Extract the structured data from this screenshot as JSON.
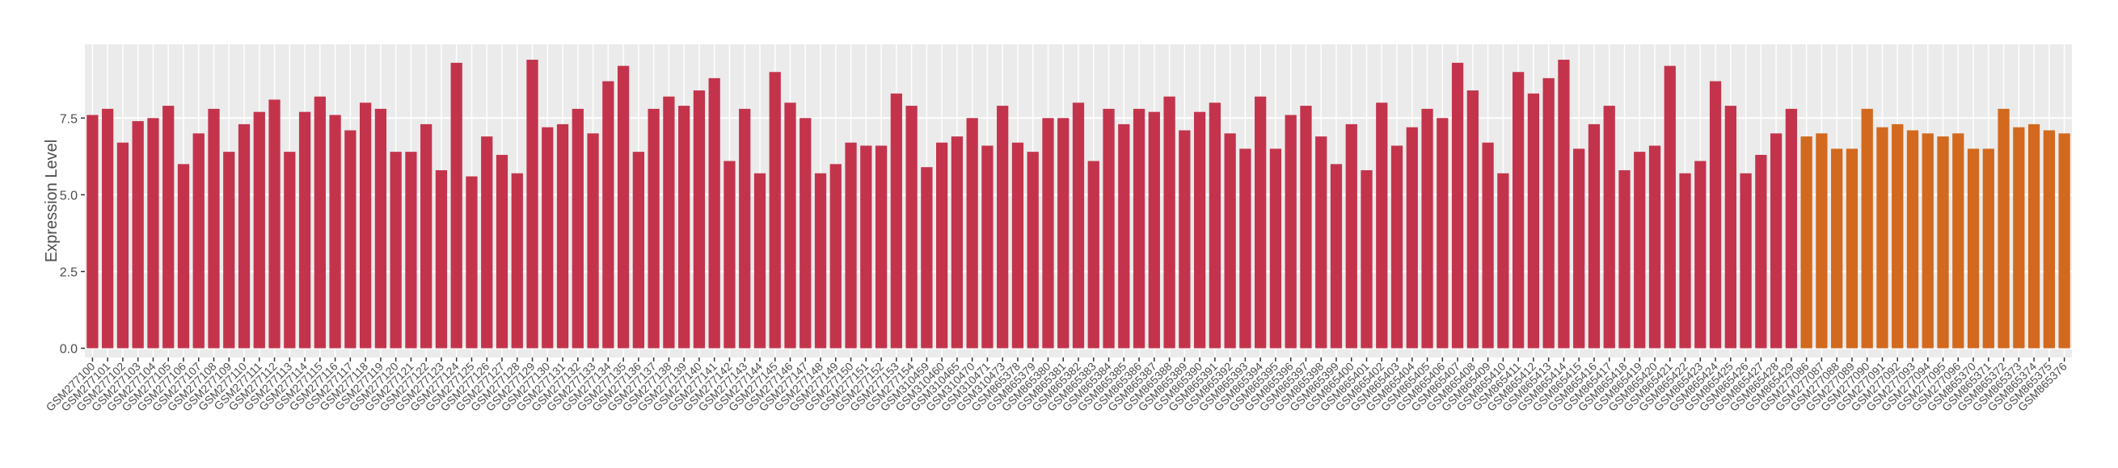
{
  "chart_data": {
    "type": "bar",
    "ylabel": "Expression Level",
    "categories": [
      "GSM277100",
      "GSM277101",
      "GSM277102",
      "GSM277103",
      "GSM277104",
      "GSM277105",
      "GSM277106",
      "GSM277107",
      "GSM277108",
      "GSM277109",
      "GSM277110",
      "GSM277111",
      "GSM277112",
      "GSM277113",
      "GSM277114",
      "GSM277115",
      "GSM277116",
      "GSM277117",
      "GSM277118",
      "GSM277119",
      "GSM277120",
      "GSM277121",
      "GSM277122",
      "GSM277123",
      "GSM277124",
      "GSM277125",
      "GSM277126",
      "GSM277127",
      "GSM277128",
      "GSM277129",
      "GSM277130",
      "GSM277131",
      "GSM277132",
      "GSM277133",
      "GSM277134",
      "GSM277135",
      "GSM277136",
      "GSM277137",
      "GSM277138",
      "GSM277139",
      "GSM277140",
      "GSM277141",
      "GSM277142",
      "GSM277143",
      "GSM277144",
      "GSM277145",
      "GSM277146",
      "GSM277147",
      "GSM277148",
      "GSM277149",
      "GSM277150",
      "GSM277151",
      "GSM277152",
      "GSM277153",
      "GSM277154",
      "GSM310459",
      "GSM310460",
      "GSM310465",
      "GSM310470",
      "GSM310471",
      "GSM310473",
      "GSM865378",
      "GSM865379",
      "GSM865380",
      "GSM865381",
      "GSM865382",
      "GSM865383",
      "GSM865384",
      "GSM865385",
      "GSM865386",
      "GSM865387",
      "GSM865388",
      "GSM865389",
      "GSM865390",
      "GSM865391",
      "GSM865392",
      "GSM865393",
      "GSM865394",
      "GSM865395",
      "GSM865396",
      "GSM865397",
      "GSM865398",
      "GSM865399",
      "GSM865400",
      "GSM865401",
      "GSM865402",
      "GSM865403",
      "GSM865404",
      "GSM865405",
      "GSM865406",
      "GSM865407",
      "GSM865408",
      "GSM865409",
      "GSM865410",
      "GSM865411",
      "GSM865412",
      "GSM865413",
      "GSM865414",
      "GSM865415",
      "GSM865416",
      "GSM865417",
      "GSM865418",
      "GSM865419",
      "GSM865420",
      "GSM865421",
      "GSM865422",
      "GSM865423",
      "GSM865424",
      "GSM865425",
      "GSM865426",
      "GSM865427",
      "GSM865428",
      "GSM865429",
      "GSM277086",
      "GSM277087",
      "GSM277088",
      "GSM277089",
      "GSM277090",
      "GSM277091",
      "GSM277092",
      "GSM277093",
      "GSM277094",
      "GSM277095",
      "GSM277096",
      "GSM865370",
      "GSM865371",
      "GSM865372",
      "GSM865373",
      "GSM865374",
      "GSM865375",
      "GSM865376"
    ],
    "values": [
      7.6,
      7.8,
      6.7,
      7.4,
      7.5,
      7.9,
      6.0,
      7.0,
      7.8,
      6.4,
      7.3,
      7.7,
      8.1,
      6.4,
      7.7,
      8.2,
      7.6,
      7.1,
      8.0,
      7.8,
      6.4,
      6.4,
      7.3,
      5.8,
      9.3,
      5.6,
      6.9,
      6.3,
      5.7,
      9.4,
      7.2,
      7.3,
      7.8,
      7.0,
      8.7,
      9.2,
      6.4,
      7.8,
      8.2,
      7.9,
      8.4,
      8.8,
      6.1,
      7.8,
      5.7,
      9.0,
      8.0,
      7.5,
      5.7,
      6.0,
      6.7,
      6.6,
      6.6,
      8.3,
      7.9,
      5.9,
      6.7,
      6.9,
      7.5,
      6.6,
      7.9,
      6.7,
      6.4,
      7.5,
      7.5,
      8.0,
      6.1,
      7.8,
      7.3,
      7.8,
      7.7,
      8.2,
      7.1,
      7.7,
      8.0,
      7.0,
      6.5,
      8.2,
      6.5,
      7.6,
      7.9,
      6.9,
      6.0,
      7.3,
      5.8,
      8.0,
      6.6,
      7.2,
      7.8,
      7.5,
      9.3,
      8.4,
      6.7,
      5.7,
      9.0,
      8.3,
      8.8,
      9.4,
      6.5,
      7.3,
      7.9,
      5.8,
      6.4,
      6.6,
      9.2,
      5.7,
      6.1,
      8.7,
      7.9,
      5.7,
      6.3,
      7.0,
      7.8,
      6.9,
      7.0,
      6.5,
      6.5,
      7.8,
      7.2,
      7.3,
      7.1,
      7.0,
      6.9,
      7.0,
      6.5,
      6.5,
      7.8,
      7.2,
      7.3,
      7.1,
      7.0
    ],
    "colors": [
      "#c3344c",
      "#c3344c",
      "#c3344c",
      "#c3344c",
      "#c3344c",
      "#c3344c",
      "#c3344c",
      "#c3344c",
      "#c3344c",
      "#c3344c",
      "#c3344c",
      "#c3344c",
      "#c3344c",
      "#c3344c",
      "#c3344c",
      "#c3344c",
      "#c3344c",
      "#c3344c",
      "#c3344c",
      "#c3344c",
      "#c3344c",
      "#c3344c",
      "#c3344c",
      "#c3344c",
      "#c3344c",
      "#c3344c",
      "#c3344c",
      "#c3344c",
      "#c3344c",
      "#c3344c",
      "#c3344c",
      "#c3344c",
      "#c3344c",
      "#c3344c",
      "#c3344c",
      "#c3344c",
      "#c3344c",
      "#c3344c",
      "#c3344c",
      "#c3344c",
      "#c3344c",
      "#c3344c",
      "#c3344c",
      "#c3344c",
      "#c3344c",
      "#c3344c",
      "#c3344c",
      "#c3344c",
      "#c3344c",
      "#c3344c",
      "#c3344c",
      "#c3344c",
      "#c3344c",
      "#c3344c",
      "#c3344c",
      "#c3344c",
      "#c3344c",
      "#c3344c",
      "#c3344c",
      "#c3344c",
      "#c3344c",
      "#c3344c",
      "#c3344c",
      "#c3344c",
      "#c3344c",
      "#c3344c",
      "#c3344c",
      "#c3344c",
      "#c3344c",
      "#c3344c",
      "#c3344c",
      "#c3344c",
      "#c3344c",
      "#c3344c",
      "#c3344c",
      "#c3344c",
      "#c3344c",
      "#c3344c",
      "#c3344c",
      "#c3344c",
      "#c3344c",
      "#c3344c",
      "#c3344c",
      "#c3344c",
      "#c3344c",
      "#c3344c",
      "#c3344c",
      "#c3344c",
      "#c3344c",
      "#c3344c",
      "#c3344c",
      "#c3344c",
      "#c3344c",
      "#c3344c",
      "#c3344c",
      "#c3344c",
      "#c3344c",
      "#c3344c",
      "#c3344c",
      "#c3344c",
      "#c3344c",
      "#c3344c",
      "#c3344c",
      "#c3344c",
      "#c3344c",
      "#c3344c",
      "#c3344c",
      "#c3344c",
      "#c3344c",
      "#c3344c",
      "#c3344c",
      "#c3344c",
      "#c3344c",
      "#d2691e",
      "#d2691e",
      "#d2691e",
      "#d2691e",
      "#d2691e",
      "#d2691e",
      "#d2691e",
      "#d2691e",
      "#d2691e",
      "#d2691e",
      "#d2691e",
      "#d2691e",
      "#d2691e",
      "#d2691e",
      "#d2691e",
      "#d2691e",
      "#d2691e",
      "#d2691e"
    ],
    "ylim": [
      -0.3,
      9.9
    ],
    "yticks": [
      {
        "value": 0,
        "label": "0.0"
      },
      2.5,
      {
        "value": 5,
        "label": "5.0"
      },
      7.5
    ],
    "grid": true
  }
}
